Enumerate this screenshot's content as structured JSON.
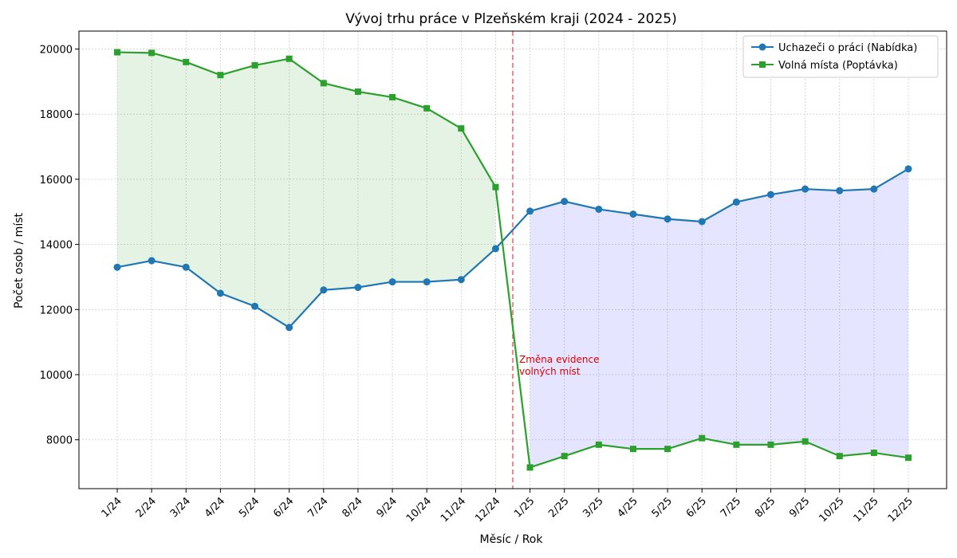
{
  "chart_data": {
    "type": "line",
    "title": "Vývoj trhu práce v Plzeňském kraji (2024 - 2025)",
    "xlabel": "Měsíc / Rok",
    "ylabel": "Počet osob / míst",
    "categories": [
      "1/24",
      "2/24",
      "3/24",
      "4/24",
      "5/24",
      "6/24",
      "7/24",
      "8/24",
      "9/24",
      "10/24",
      "11/24",
      "12/24",
      "1/25",
      "2/25",
      "3/25",
      "4/25",
      "5/25",
      "6/25",
      "7/25",
      "8/25",
      "9/25",
      "10/25",
      "11/25",
      "12/25"
    ],
    "yticks": [
      8000,
      10000,
      12000,
      14000,
      16000,
      18000,
      20000
    ],
    "ylim": [
      6500,
      20550
    ],
    "grid": true,
    "legend_position": "top-right",
    "series": [
      {
        "name": "Uchazeči o práci (Nabídka)",
        "marker": "circle",
        "color": "#1f77b4",
        "values": [
          13300,
          13500,
          13300,
          12500,
          12100,
          11450,
          12600,
          12680,
          12850,
          12850,
          12920,
          13870,
          15020,
          15320,
          15080,
          14930,
          14780,
          14700,
          15300,
          15530,
          15700,
          15650,
          15700,
          16320
        ]
      },
      {
        "name": "Volná místa (Poptávka)",
        "marker": "square",
        "color": "#2ca02c",
        "values": [
          19900,
          19880,
          19600,
          19200,
          19500,
          19700,
          18950,
          18690,
          18520,
          18180,
          17560,
          15760,
          7150,
          7500,
          7850,
          7720,
          7720,
          8050,
          7850,
          7850,
          7950,
          7500,
          7600,
          7450
        ]
      }
    ],
    "fill_green_color": "#2ca02c",
    "fill_blue_color": "#0000ff",
    "divider": {
      "between_categories": [
        "12/24",
        "1/25"
      ],
      "color": "#e06666",
      "annotation": [
        "Změna evidence",
        "volných míst"
      ],
      "annotation_color": "#e00000"
    }
  }
}
